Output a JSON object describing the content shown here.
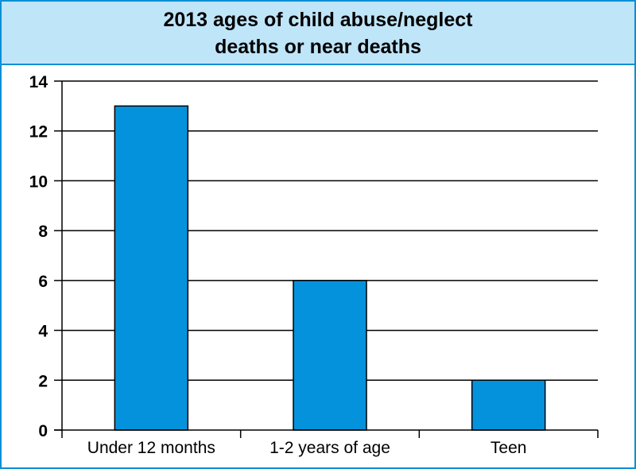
{
  "chart_data": {
    "type": "bar",
    "title_lines": [
      "2013 ages of child abuse/neglect",
      "deaths or near deaths"
    ],
    "categories": [
      "Under 12 months",
      "1-2 years of age",
      "Teen"
    ],
    "values": [
      13,
      6,
      2
    ],
    "xlabel": "",
    "ylabel": "",
    "ylim": [
      0,
      14
    ],
    "yticks": [
      "0",
      "2",
      "4",
      "6",
      "8",
      "10",
      "12",
      "14"
    ],
    "grid": true,
    "legend": "none",
    "colors": {
      "bar": "#0592dc",
      "frame": "#0b8fd6",
      "title_background": "#bfe5f8"
    }
  }
}
